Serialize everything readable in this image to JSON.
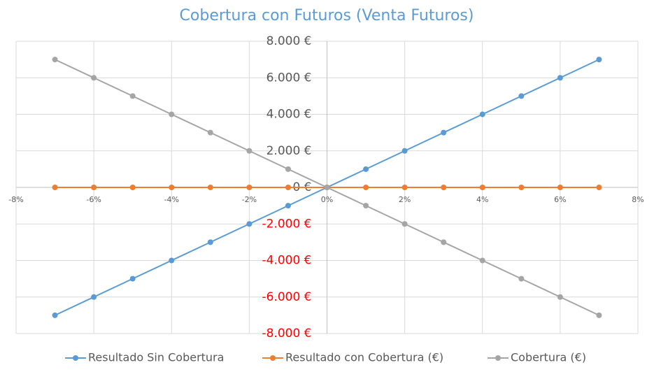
{
  "chart_data": {
    "type": "line",
    "title": "Cobertura con Futuros (Venta Futuros)",
    "x": [
      -7,
      -6,
      -5,
      -4,
      -3,
      -2,
      -1,
      0,
      1,
      2,
      3,
      4,
      5,
      6,
      7
    ],
    "series": [
      {
        "name": "Resultado Sin Cobertura",
        "color": "#5b9bd5",
        "values": [
          -7000,
          -6000,
          -5000,
          -4000,
          -3000,
          -2000,
          -1000,
          0,
          1000,
          2000,
          3000,
          4000,
          5000,
          6000,
          7000
        ]
      },
      {
        "name": "Resultado con Cobertura (€)",
        "color": "#ed7d31",
        "values": [
          0,
          0,
          0,
          0,
          0,
          0,
          0,
          0,
          0,
          0,
          0,
          0,
          0,
          0,
          0
        ]
      },
      {
        "name": "Cobertura (€)",
        "color": "#a5a5a5",
        "values": [
          7000,
          6000,
          5000,
          4000,
          3000,
          2000,
          1000,
          0,
          -1000,
          -2000,
          -3000,
          -4000,
          -5000,
          -6000,
          -7000
        ]
      }
    ],
    "xlim": [
      -8,
      8
    ],
    "xticks": [
      {
        "value": -8,
        "label": "-8%"
      },
      {
        "value": -6,
        "label": "-6%"
      },
      {
        "value": -4,
        "label": "-4%"
      },
      {
        "value": -2,
        "label": "-2%"
      },
      {
        "value": 0,
        "label": "0%"
      },
      {
        "value": 2,
        "label": "2%"
      },
      {
        "value": 4,
        "label": "4%"
      },
      {
        "value": 6,
        "label": "6%"
      },
      {
        "value": 8,
        "label": "8%"
      }
    ],
    "ylim": [
      -8000,
      8000
    ],
    "yticks": [
      {
        "value": -8000,
        "label": "-8.000 €"
      },
      {
        "value": -6000,
        "label": "-6.000 €"
      },
      {
        "value": -4000,
        "label": "-4.000 €"
      },
      {
        "value": -2000,
        "label": "-2.000 €"
      },
      {
        "value": 0,
        "label": "0 €"
      },
      {
        "value": 2000,
        "label": "2.000 €"
      },
      {
        "value": 4000,
        "label": "4.000 €"
      },
      {
        "value": 6000,
        "label": "6.000 €"
      },
      {
        "value": 8000,
        "label": "8.000 €"
      }
    ],
    "negative_tick_color": "#ff0000",
    "grid": true,
    "legend": "bottom"
  }
}
